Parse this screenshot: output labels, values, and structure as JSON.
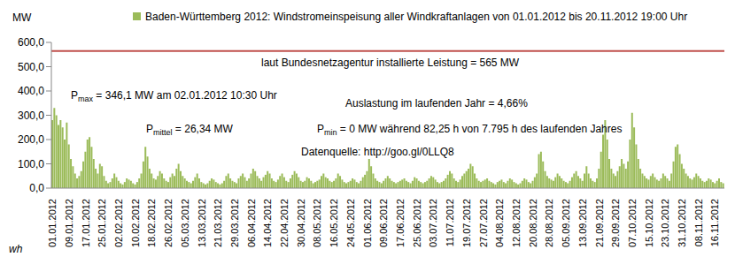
{
  "chart_data": {
    "type": "bar",
    "y_label": "MW",
    "x_label": "wh",
    "legend": "top",
    "grid": false,
    "series": [
      {
        "name": "Baden-Württemberg 2012: Windstromeinspeisung aller Windkraftanlagen von 01.01.2012 bis 20.11.2012 19:00 Uhr",
        "color": "#9bbb59"
      }
    ],
    "ylim": [
      0,
      600
    ],
    "yticks": [
      {
        "value": 0,
        "label": "0,0"
      },
      {
        "value": 100,
        "label": "100,0"
      },
      {
        "value": 200,
        "label": "200,0"
      },
      {
        "value": 300,
        "label": "300,0"
      },
      {
        "value": 400,
        "label": "400,0"
      },
      {
        "value": 500,
        "label": "500,0"
      },
      {
        "value": 600,
        "label": "600,0"
      }
    ],
    "reference_lines": [
      {
        "value": 565,
        "color": "#c0504d",
        "label": "laut Bundesnetzagentur installierte Leistung = 565 MW"
      }
    ],
    "annotations": [
      {
        "text": "P",
        "sub": "max",
        "rest": " = 346,1 MW am 02.01.2012 10:30 Uhr"
      },
      {
        "text": "Auslastung im laufenden Jahr = 4,66%"
      },
      {
        "text": "P",
        "sub": "mittel",
        "rest": " = 26,34 MW"
      },
      {
        "text": "P",
        "sub": "min",
        "rest": " = 0 MW während 82,25 h von 7.795 h des laufenden Jahres"
      },
      {
        "text": "Datenquelle:  http://goo.gl/0LLQ8"
      }
    ],
    "categories": [
      "01.01.2012",
      null,
      null,
      null,
      null,
      null,
      null,
      null,
      "09.01.2012",
      null,
      null,
      null,
      null,
      null,
      null,
      null,
      "17.01.2012",
      null,
      null,
      null,
      null,
      null,
      null,
      null,
      "25.01.2012",
      null,
      null,
      null,
      null,
      null,
      null,
      null,
      "02.02.2012",
      null,
      null,
      null,
      null,
      null,
      null,
      null,
      "10.02.2012",
      null,
      null,
      null,
      null,
      null,
      null,
      null,
      "18.02.2012",
      null,
      null,
      null,
      null,
      null,
      null,
      null,
      "26.02.2012",
      null,
      null,
      null,
      null,
      null,
      null,
      null,
      "05.03.2012",
      null,
      null,
      null,
      null,
      null,
      null,
      null,
      "13.03.2012",
      null,
      null,
      null,
      null,
      null,
      null,
      null,
      "21.03.2012",
      null,
      null,
      null,
      null,
      null,
      null,
      null,
      "29.03.2012",
      null,
      null,
      null,
      null,
      null,
      null,
      null,
      "06.04.2012",
      null,
      null,
      null,
      null,
      null,
      null,
      null,
      "14.04.2012",
      null,
      null,
      null,
      null,
      null,
      null,
      null,
      "22.04.2012",
      null,
      null,
      null,
      null,
      null,
      null,
      null,
      "30.04.2012",
      null,
      null,
      null,
      null,
      null,
      null,
      null,
      "08.05.2012",
      null,
      null,
      null,
      null,
      null,
      null,
      null,
      "16.05.2012",
      null,
      null,
      null,
      null,
      null,
      null,
      null,
      "24.05.2012",
      null,
      null,
      null,
      null,
      null,
      null,
      null,
      "01.06.2012",
      null,
      null,
      null,
      null,
      null,
      null,
      null,
      "09.06.2012",
      null,
      null,
      null,
      null,
      null,
      null,
      null,
      "17.06.2012",
      null,
      null,
      null,
      null,
      null,
      null,
      null,
      "25.06.2012",
      null,
      null,
      null,
      null,
      null,
      null,
      null,
      "03.07.2012",
      null,
      null,
      null,
      null,
      null,
      null,
      null,
      "11.07.2012",
      null,
      null,
      null,
      null,
      null,
      null,
      null,
      "19.07.2012",
      null,
      null,
      null,
      null,
      null,
      null,
      null,
      "27.07.2012",
      null,
      null,
      null,
      null,
      null,
      null,
      null,
      "04.08.2012",
      null,
      null,
      null,
      null,
      null,
      null,
      null,
      "12.08.2012",
      null,
      null,
      null,
      null,
      null,
      null,
      null,
      "20.08.2012",
      null,
      null,
      null,
      null,
      null,
      null,
      null,
      "28.08.2012",
      null,
      null,
      null,
      null,
      null,
      null,
      null,
      "05.09.2012",
      null,
      null,
      null,
      null,
      null,
      null,
      null,
      "13.09.2012",
      null,
      null,
      null,
      null,
      null,
      null,
      null,
      "21.09.2012",
      null,
      null,
      null,
      null,
      null,
      null,
      null,
      "29.09.2012",
      null,
      null,
      null,
      null,
      null,
      null,
      null,
      "07.10.2012",
      null,
      null,
      null,
      null,
      null,
      null,
      null,
      "15.10.2012",
      null,
      null,
      null,
      null,
      null,
      null,
      null,
      "23.10.2012",
      null,
      null,
      null,
      null,
      null,
      null,
      null,
      "31.10.2012",
      null,
      null,
      null,
      null,
      null,
      null,
      null,
      "08.11.2012",
      null,
      null,
      null,
      null,
      null,
      null,
      null,
      "16.11.2012",
      null,
      null,
      null,
      null
    ],
    "values": [
      280,
      330,
      300,
      260,
      280,
      250,
      200,
      270,
      180,
      120,
      90,
      60,
      40,
      50,
      70,
      110,
      150,
      200,
      210,
      170,
      120,
      80,
      60,
      100,
      90,
      50,
      30,
      20,
      25,
      40,
      60,
      45,
      30,
      20,
      15,
      25,
      40,
      35,
      30,
      20,
      15,
      25,
      40,
      60,
      110,
      170,
      130,
      80,
      60,
      40,
      35,
      50,
      70,
      60,
      40,
      30,
      25,
      45,
      60,
      50,
      80,
      100,
      70,
      50,
      40,
      30,
      25,
      20,
      30,
      45,
      60,
      40,
      25,
      20,
      15,
      20,
      30,
      40,
      35,
      25,
      20,
      15,
      20,
      30,
      50,
      60,
      40,
      30,
      25,
      20,
      40,
      50,
      60,
      45,
      30,
      40,
      60,
      80,
      70,
      50,
      40,
      30,
      45,
      55,
      70,
      60,
      40,
      30,
      25,
      35,
      50,
      60,
      45,
      30,
      25,
      40,
      55,
      70,
      60,
      45,
      30,
      25,
      30,
      45,
      40,
      30,
      20,
      25,
      30,
      35,
      50,
      60,
      45,
      40,
      30,
      25,
      30,
      40,
      60,
      50,
      35,
      25,
      20,
      25,
      30,
      40,
      35,
      25,
      20,
      30,
      45,
      55,
      70,
      120,
      90,
      60,
      40,
      30,
      25,
      20,
      30,
      40,
      50,
      40,
      30,
      25,
      20,
      25,
      30,
      35,
      40,
      30,
      25,
      20,
      30,
      45,
      40,
      30,
      25,
      20,
      25,
      30,
      40,
      50,
      45,
      35,
      25,
      20,
      25,
      30,
      40,
      55,
      70,
      60,
      40,
      30,
      25,
      35,
      50,
      60,
      70,
      80,
      100,
      90,
      60,
      40,
      30,
      25,
      30,
      35,
      40,
      30,
      25,
      20,
      15,
      25,
      30,
      35,
      25,
      20,
      30,
      40,
      35,
      25,
      20,
      15,
      20,
      30,
      40,
      35,
      25,
      20,
      30,
      45,
      60,
      140,
      150,
      110,
      70,
      50,
      40,
      35,
      30,
      45,
      60,
      50,
      40,
      30,
      25,
      20,
      30,
      45,
      60,
      70,
      50,
      40,
      30,
      60,
      90,
      60,
      40,
      30,
      25,
      40,
      80,
      150,
      220,
      280,
      200,
      120,
      80,
      60,
      50,
      70,
      90,
      120,
      100,
      80,
      110,
      200,
      310,
      250,
      180,
      120,
      80,
      60,
      50,
      40,
      35,
      50,
      60,
      45,
      35,
      30,
      40,
      60,
      50,
      40,
      30,
      60,
      110,
      170,
      180,
      140,
      100,
      80,
      60,
      50,
      40,
      35,
      45,
      60,
      50,
      40,
      30,
      25,
      30,
      40,
      35,
      25,
      20,
      30,
      40,
      25,
      20
    ]
  }
}
